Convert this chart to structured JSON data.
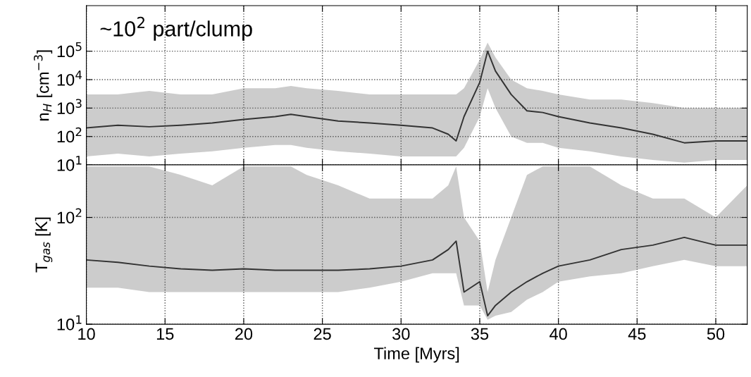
{
  "chart_data": [
    {
      "type": "line",
      "ylabel": "n$_{H}$ [cm$^{−3}$]",
      "annotations": [
        "~10$^{2}$ part/clump"
      ],
      "log": "y",
      "grid": true,
      "tick_labels": "y",
      "line_style": "solid",
      "marker": "none",
      "xlim": [
        10,
        52
      ],
      "xticks": [
        10,
        15,
        20,
        25,
        30,
        35,
        40,
        45,
        50
      ],
      "ylim": [
        10,
        4000000
      ],
      "yticks": [
        {
          "value": 10,
          "label": "10$^{1}$"
        },
        {
          "value": 100,
          "label": "10$^{2}$"
        },
        {
          "value": 1000,
          "label": "10$^{3}$"
        },
        {
          "value": 10000,
          "label": "10$^{4}$"
        },
        {
          "value": 100000,
          "label": "10$^{5}$"
        }
      ],
      "x": [
        10,
        12,
        14,
        16,
        18,
        20,
        22,
        23,
        24,
        26,
        28,
        30,
        32,
        33,
        33.5,
        34,
        35,
        35.5,
        36,
        37,
        38,
        39,
        40,
        42,
        44,
        46,
        48,
        50,
        52
      ],
      "series": [
        {
          "color": "#333333",
          "values": [
            200,
            250,
            220,
            250,
            300,
            400,
            500,
            600,
            500,
            350,
            300,
            250,
            200,
            120,
            70,
            500,
            8000,
            100000,
            20000,
            3000,
            800,
            700,
            500,
            300,
            200,
            120,
            60,
            70,
            70
          ],
          "lower": [
            20,
            25,
            20,
            25,
            30,
            40,
            50,
            50,
            40,
            30,
            25,
            20,
            20,
            20,
            20,
            40,
            500,
            5000,
            1000,
            100,
            60,
            60,
            40,
            30,
            20,
            15,
            12,
            15,
            15
          ],
          "upper": [
            3000,
            3000,
            4000,
            3000,
            3000,
            5000,
            5000,
            6000,
            5000,
            4000,
            3000,
            3000,
            3000,
            3000,
            3000,
            5000,
            50000,
            200000,
            60000,
            10000,
            5000,
            4000,
            3000,
            2000,
            2000,
            1500,
            1000,
            1000,
            1000
          ]
        }
      ]
    },
    {
      "type": "line",
      "ylabel": "T$_{gas}$ [K]",
      "xlabel": "Time [Myrs]",
      "log": "y",
      "grid": true,
      "line_style": "solid",
      "marker": "none",
      "xlim": [
        10,
        52
      ],
      "xticks": [
        10,
        15,
        20,
        25,
        30,
        35,
        40,
        45,
        50
      ],
      "ylim": [
        10,
        310
      ],
      "yticks": [
        {
          "value": 10,
          "label": "10$^{1}$"
        },
        {
          "value": 100,
          "label": "10$^{2}$"
        }
      ],
      "x": [
        10,
        12,
        14,
        16,
        18,
        20,
        22,
        23,
        24,
        26,
        28,
        30,
        32,
        33,
        33.5,
        34,
        35,
        35.5,
        36,
        37,
        38,
        39,
        40,
        42,
        44,
        46,
        48,
        50,
        52
      ],
      "series": [
        {
          "color": "#333333",
          "values": [
            40,
            38,
            35,
            33,
            32,
            33,
            32,
            32,
            32,
            32,
            33,
            35,
            40,
            50,
            60,
            20,
            25,
            12,
            15,
            20,
            25,
            30,
            35,
            40,
            50,
            55,
            65,
            55,
            55
          ],
          "lower": [
            22,
            22,
            20,
            20,
            20,
            20,
            20,
            20,
            20,
            20,
            22,
            25,
            30,
            30,
            30,
            15,
            15,
            11,
            12,
            13,
            17,
            20,
            25,
            28,
            30,
            35,
            40,
            35,
            35
          ],
          "upper": [
            300,
            300,
            300,
            250,
            200,
            300,
            300,
            300,
            250,
            200,
            150,
            150,
            150,
            200,
            300,
            100,
            60,
            20,
            40,
            100,
            250,
            300,
            300,
            300,
            200,
            150,
            150,
            100,
            200
          ]
        }
      ]
    }
  ]
}
